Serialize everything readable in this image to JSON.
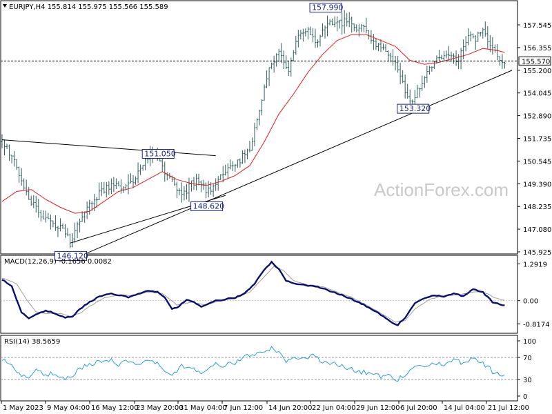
{
  "header": {
    "main": "EURJPY,H4  155.814 155.975 155.566 155.589",
    "macd": "MACD(12,26,9) -0.1656 0.0082",
    "rsi": "RSI(14) 38.5659"
  },
  "watermark": "ActionForex.com",
  "colors": {
    "background": "#ffffff",
    "bars": "#2f5f5f",
    "ma": "#e01b1b",
    "macd_main": "#0a0f6e",
    "macd_signal": "#a0a0a0",
    "rsi": "#2a9fd6",
    "trendline": "#000000",
    "label_text": "#1a237e"
  },
  "chart_data": [
    {
      "type": "ohlc",
      "symbol": "EURJPY",
      "timeframe": "H4",
      "ylim": [
        145.925,
        158.5
      ],
      "yticks": [
        "157.545",
        "156.355",
        "155.200",
        "154.045",
        "152.890",
        "151.735",
        "150.545",
        "149.390",
        "148.235",
        "147.080",
        "145.925"
      ],
      "current_price": "155.570",
      "xticks": [
        "1 May 2023",
        "9 May 04:00",
        "16 May 12:00",
        "23 May 20:00",
        "31 May 04:00",
        "7 Jun 12:00",
        "14 Jun 20:00",
        "22 Jun 04:00",
        "29 Jun 12:00",
        "6 Jul 20:00",
        "14 Jul 04:00",
        "21 Jul 12:00"
      ],
      "close_path": [
        [
          0,
          151.5
        ],
        [
          5,
          150.6
        ],
        [
          10,
          148.9
        ],
        [
          14,
          148.1
        ],
        [
          18,
          147.6
        ],
        [
          22,
          147.3
        ],
        [
          26,
          147.0
        ],
        [
          28,
          146.4
        ],
        [
          30,
          147.1
        ],
        [
          34,
          147.9
        ],
        [
          38,
          148.6
        ],
        [
          42,
          149.1
        ],
        [
          46,
          149.3
        ],
        [
          50,
          149.2
        ],
        [
          54,
          149.5
        ],
        [
          58,
          150.4
        ],
        [
          62,
          150.9
        ],
        [
          65,
          150.4
        ],
        [
          68,
          149.7
        ],
        [
          72,
          149.2
        ],
        [
          75,
          148.9
        ],
        [
          78,
          149.4
        ],
        [
          81,
          149.6
        ],
        [
          84,
          149.0
        ],
        [
          87,
          149.2
        ],
        [
          90,
          149.8
        ],
        [
          94,
          150.2
        ],
        [
          98,
          150.6
        ],
        [
          102,
          151.2
        ],
        [
          106,
          152.9
        ],
        [
          110,
          155.3
        ],
        [
          114,
          156.0
        ],
        [
          118,
          155.2
        ],
        [
          122,
          156.8
        ],
        [
          126,
          157.2
        ],
        [
          130,
          156.5
        ],
        [
          134,
          157.6
        ],
        [
          138,
          157.4
        ],
        [
          142,
          157.6
        ],
        [
          146,
          157.3
        ],
        [
          150,
          157.1
        ],
        [
          154,
          156.4
        ],
        [
          158,
          156.0
        ],
        [
          162,
          155.6
        ],
        [
          166,
          154.0
        ],
        [
          169,
          153.5
        ],
        [
          172,
          154.3
        ],
        [
          176,
          155.2
        ],
        [
          180,
          155.7
        ],
        [
          184,
          156.0
        ],
        [
          188,
          155.6
        ],
        [
          192,
          157.0
        ],
        [
          195,
          156.6
        ],
        [
          198,
          157.3
        ],
        [
          201,
          156.4
        ],
        [
          204,
          155.8
        ],
        [
          207,
          155.6
        ]
      ],
      "ma_path": [
        [
          0,
          148.5
        ],
        [
          6,
          149.0
        ],
        [
          12,
          149.1
        ],
        [
          18,
          148.6
        ],
        [
          24,
          148.2
        ],
        [
          30,
          147.9
        ],
        [
          36,
          148.0
        ],
        [
          42,
          148.5
        ],
        [
          48,
          149.0
        ],
        [
          54,
          149.2
        ],
        [
          60,
          149.6
        ],
        [
          66,
          150.0
        ],
        [
          72,
          149.6
        ],
        [
          78,
          149.4
        ],
        [
          84,
          149.3
        ],
        [
          90,
          149.5
        ],
        [
          96,
          149.8
        ],
        [
          102,
          150.3
        ],
        [
          108,
          151.5
        ],
        [
          114,
          152.9
        ],
        [
          120,
          153.9
        ],
        [
          126,
          155.0
        ],
        [
          132,
          155.9
        ],
        [
          138,
          156.6
        ],
        [
          144,
          156.9
        ],
        [
          150,
          156.9
        ],
        [
          156,
          156.6
        ],
        [
          162,
          156.3
        ],
        [
          168,
          155.6
        ],
        [
          174,
          155.4
        ],
        [
          180,
          155.5
        ],
        [
          186,
          155.7
        ],
        [
          192,
          155.9
        ],
        [
          198,
          156.2
        ],
        [
          204,
          156.1
        ],
        [
          207,
          156.0
        ]
      ],
      "annotations": [
        {
          "text": "157.990",
          "x": 133,
          "y": 157.99
        },
        {
          "text": "151.050",
          "x": 64,
          "y": 151.05
        },
        {
          "text": "148.620",
          "x": 84,
          "y": 148.62
        },
        {
          "text": "146.120",
          "x": 28,
          "y": 146.12
        },
        {
          "text": "153.320",
          "x": 169,
          "y": 153.32
        }
      ],
      "trendlines": [
        {
          "from": [
            0,
            151.6
          ],
          "to": [
            88,
            150.8
          ]
        },
        {
          "from": [
            28,
            146.4
          ],
          "to": [
            92,
            148.8
          ]
        },
        {
          "from": [
            35,
            145.9
          ],
          "to": [
            210,
            155.1
          ]
        }
      ]
    },
    {
      "type": "line",
      "name": "MACD(12,26,9)",
      "yticks": [
        "1.2919",
        "0.00",
        "-0.8174"
      ],
      "ylim": [
        -1.1,
        1.45
      ],
      "main_path": [
        [
          0,
          0.75
        ],
        [
          4,
          0.5
        ],
        [
          8,
          -0.4
        ],
        [
          11,
          -0.62
        ],
        [
          14,
          -0.5
        ],
        [
          18,
          -0.35
        ],
        [
          22,
          -0.45
        ],
        [
          26,
          -0.6
        ],
        [
          29,
          -0.55
        ],
        [
          32,
          -0.3
        ],
        [
          36,
          -0.05
        ],
        [
          40,
          0.15
        ],
        [
          44,
          0.25
        ],
        [
          48,
          0.2
        ],
        [
          52,
          0.12
        ],
        [
          56,
          0.25
        ],
        [
          60,
          0.35
        ],
        [
          64,
          0.3
        ],
        [
          67,
          0.1
        ],
        [
          70,
          -0.3
        ],
        [
          73,
          -0.2
        ],
        [
          76,
          0.05
        ],
        [
          79,
          -0.05
        ],
        [
          82,
          -0.2
        ],
        [
          85,
          -0.1
        ],
        [
          88,
          0.0
        ],
        [
          92,
          0.05
        ],
        [
          96,
          0.1
        ],
        [
          100,
          0.25
        ],
        [
          104,
          0.6
        ],
        [
          108,
          1.1
        ],
        [
          111,
          1.35
        ],
        [
          114,
          1.1
        ],
        [
          117,
          0.7
        ],
        [
          120,
          0.6
        ],
        [
          124,
          0.55
        ],
        [
          128,
          0.5
        ],
        [
          132,
          0.45
        ],
        [
          136,
          0.3
        ],
        [
          140,
          0.2
        ],
        [
          144,
          0.05
        ],
        [
          148,
          -0.1
        ],
        [
          152,
          -0.3
        ],
        [
          156,
          -0.5
        ],
        [
          160,
          -0.75
        ],
        [
          163,
          -0.85
        ],
        [
          166,
          -0.6
        ],
        [
          170,
          -0.1
        ],
        [
          174,
          0.1
        ],
        [
          178,
          0.2
        ],
        [
          182,
          0.15
        ],
        [
          186,
          0.25
        ],
        [
          190,
          0.15
        ],
        [
          194,
          0.4
        ],
        [
          198,
          0.3
        ],
        [
          202,
          -0.05
        ],
        [
          207,
          -0.17
        ]
      ],
      "signal_path": [
        [
          0,
          0.8
        ],
        [
          6,
          0.6
        ],
        [
          10,
          0.05
        ],
        [
          14,
          -0.4
        ],
        [
          18,
          -0.45
        ],
        [
          24,
          -0.45
        ],
        [
          28,
          -0.55
        ],
        [
          32,
          -0.45
        ],
        [
          36,
          -0.2
        ],
        [
          42,
          0.1
        ],
        [
          48,
          0.2
        ],
        [
          54,
          0.18
        ],
        [
          60,
          0.3
        ],
        [
          66,
          0.25
        ],
        [
          72,
          -0.15
        ],
        [
          78,
          -0.05
        ],
        [
          84,
          -0.15
        ],
        [
          90,
          0.0
        ],
        [
          96,
          0.08
        ],
        [
          102,
          0.3
        ],
        [
          108,
          0.85
        ],
        [
          112,
          1.2
        ],
        [
          116,
          1.05
        ],
        [
          120,
          0.7
        ],
        [
          126,
          0.55
        ],
        [
          132,
          0.5
        ],
        [
          138,
          0.3
        ],
        [
          144,
          0.12
        ],
        [
          150,
          -0.15
        ],
        [
          156,
          -0.45
        ],
        [
          162,
          -0.75
        ],
        [
          166,
          -0.7
        ],
        [
          170,
          -0.3
        ],
        [
          176,
          0.05
        ],
        [
          182,
          0.18
        ],
        [
          188,
          0.2
        ],
        [
          194,
          0.3
        ],
        [
          198,
          0.32
        ],
        [
          203,
          0.1
        ],
        [
          207,
          0.01
        ]
      ]
    },
    {
      "type": "line",
      "name": "RSI(14)",
      "yticks": [
        "100",
        "70",
        "30",
        "0"
      ],
      "ylim": [
        0,
        100
      ],
      "levels": [
        70,
        30
      ],
      "path": [
        [
          0,
          68
        ],
        [
          4,
          55
        ],
        [
          8,
          40
        ],
        [
          11,
          33
        ],
        [
          14,
          45
        ],
        [
          18,
          38
        ],
        [
          22,
          42
        ],
        [
          26,
          30
        ],
        [
          29,
          38
        ],
        [
          32,
          50
        ],
        [
          36,
          58
        ],
        [
          40,
          64
        ],
        [
          44,
          66
        ],
        [
          48,
          58
        ],
        [
          52,
          64
        ],
        [
          56,
          60
        ],
        [
          60,
          66
        ],
        [
          64,
          58
        ],
        [
          67,
          42
        ],
        [
          70,
          36
        ],
        [
          73,
          52
        ],
        [
          76,
          56
        ],
        [
          79,
          50
        ],
        [
          82,
          44
        ],
        [
          85,
          52
        ],
        [
          88,
          58
        ],
        [
          92,
          56
        ],
        [
          96,
          60
        ],
        [
          100,
          70
        ],
        [
          104,
          76
        ],
        [
          108,
          82
        ],
        [
          111,
          86
        ],
        [
          114,
          78
        ],
        [
          117,
          62
        ],
        [
          120,
          68
        ],
        [
          124,
          66
        ],
        [
          128,
          72
        ],
        [
          132,
          64
        ],
        [
          136,
          58
        ],
        [
          140,
          56
        ],
        [
          144,
          48
        ],
        [
          148,
          44
        ],
        [
          152,
          40
        ],
        [
          156,
          34
        ],
        [
          160,
          36
        ],
        [
          163,
          30
        ],
        [
          166,
          38
        ],
        [
          170,
          52
        ],
        [
          174,
          56
        ],
        [
          178,
          62
        ],
        [
          182,
          58
        ],
        [
          186,
          66
        ],
        [
          190,
          58
        ],
        [
          194,
          68
        ],
        [
          198,
          60
        ],
        [
          202,
          44
        ],
        [
          207,
          38
        ]
      ]
    }
  ]
}
